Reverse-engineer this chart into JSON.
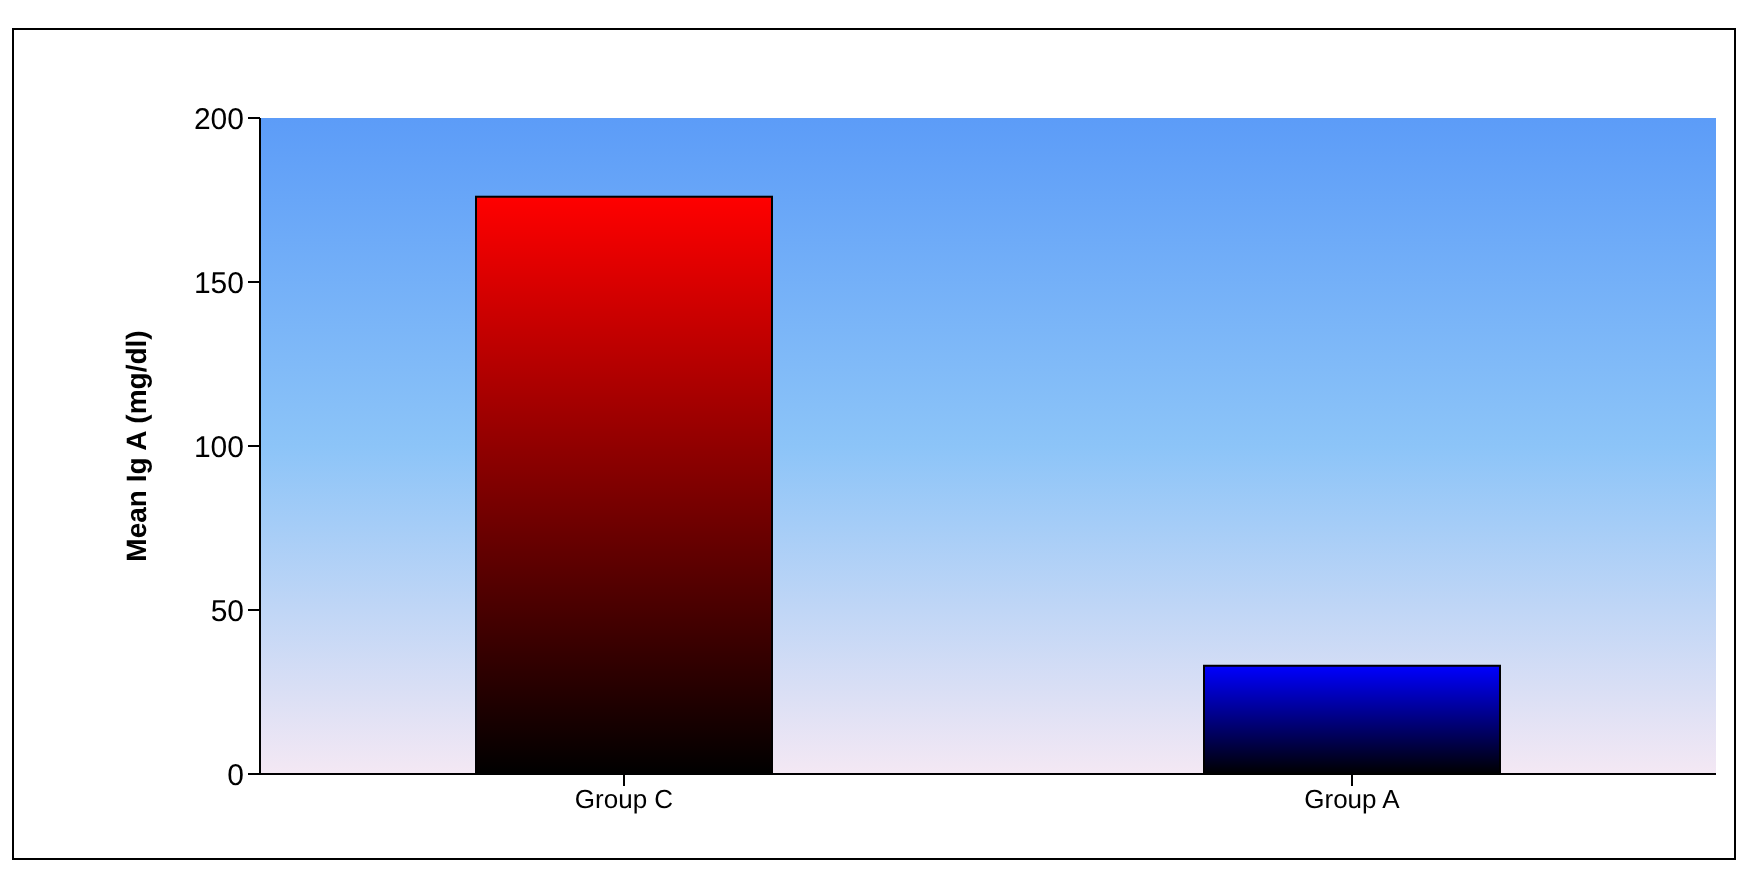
{
  "chart_data": {
    "type": "bar",
    "ylabel": "Mean Ig A (mg/dl)",
    "categories": [
      "Group C",
      "Group A"
    ],
    "values": [
      176,
      33
    ],
    "colors": [
      "#ff0000",
      "#0000ff"
    ],
    "ylim": [
      0,
      200
    ],
    "yticks": [
      0,
      50,
      100,
      150,
      200
    ],
    "grid": false
  }
}
